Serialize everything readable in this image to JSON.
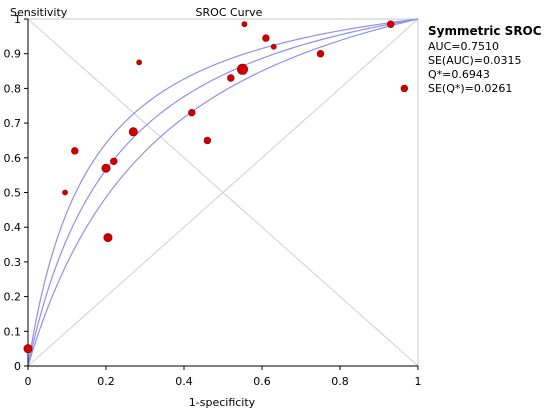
{
  "chart_data": {
    "type": "scatter",
    "title": "SROC Curve",
    "xlabel": "1-specificity",
    "ylabel": "Sensitivity",
    "xlim": [
      0,
      1
    ],
    "ylim": [
      0,
      1
    ],
    "x_ticks": [
      "0",
      "0.2",
      "0.4",
      "0.6",
      "0.8",
      "1"
    ],
    "y_ticks": [
      "0",
      "0.1",
      "0.2",
      "0.3",
      "0.4",
      "0.5",
      "0.6",
      "0.7",
      "0.8",
      "0.9",
      "1"
    ],
    "grid": false,
    "points": [
      {
        "x": 0.0,
        "y": 0.05,
        "size": "large"
      },
      {
        "x": 0.095,
        "y": 0.5,
        "size": "small"
      },
      {
        "x": 0.12,
        "y": 0.62,
        "size": "medium"
      },
      {
        "x": 0.2,
        "y": 0.57,
        "size": "large"
      },
      {
        "x": 0.205,
        "y": 0.37,
        "size": "large"
      },
      {
        "x": 0.22,
        "y": 0.59,
        "size": "medium"
      },
      {
        "x": 0.27,
        "y": 0.675,
        "size": "large"
      },
      {
        "x": 0.285,
        "y": 0.875,
        "size": "small"
      },
      {
        "x": 0.42,
        "y": 0.73,
        "size": "medium"
      },
      {
        "x": 0.46,
        "y": 0.65,
        "size": "medium"
      },
      {
        "x": 0.52,
        "y": 0.83,
        "size": "medium"
      },
      {
        "x": 0.55,
        "y": 0.855,
        "size": "xlarge"
      },
      {
        "x": 0.555,
        "y": 0.985,
        "size": "small"
      },
      {
        "x": 0.61,
        "y": 0.945,
        "size": "medium"
      },
      {
        "x": 0.63,
        "y": 0.92,
        "size": "small"
      },
      {
        "x": 0.75,
        "y": 0.9,
        "size": "medium"
      },
      {
        "x": 0.93,
        "y": 0.985,
        "size": "medium"
      },
      {
        "x": 0.965,
        "y": 0.8,
        "size": "medium"
      }
    ],
    "legend": {
      "title": "Symmetric SROC",
      "lines": [
        "AUC=0.7510",
        "SE(AUC)=0.0315",
        "Q*=0.6943",
        "SE(Q*)=0.0261"
      ],
      "placement": "right"
    },
    "curve_theta": 1.65,
    "curve_band_theta": [
      1.97,
      1.33
    ],
    "colors": {
      "points": "#cc0000",
      "curves": "#9090ee",
      "diagonals": "#d0d0d0",
      "axes": "#000000"
    }
  }
}
